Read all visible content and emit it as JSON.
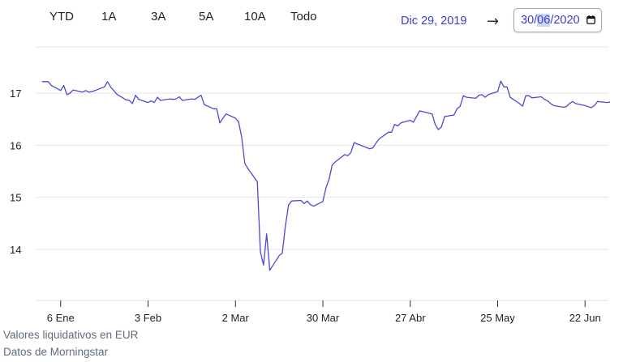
{
  "range_buttons": [
    "YTD",
    "1A",
    "3A",
    "5A",
    "10A",
    "Todo"
  ],
  "date_range": {
    "from": "Dic 29, 2019",
    "arrow": "→",
    "to_day": "30",
    "to_month": "06",
    "to_year": "2020",
    "to_icon": "calendar-icon"
  },
  "footnotes": {
    "line1": "Valores liquidativos en EUR",
    "line2": "Datos de Morningstar"
  },
  "colors": {
    "line": "#4a4ad6",
    "grid": "#e4e4e4",
    "accent_text": "#3b3bd1",
    "footnote": "#5f6c7d"
  },
  "chart_data": {
    "type": "line",
    "title": "",
    "xlabel": "",
    "ylabel": "",
    "x_start": "2019-12-29",
    "x_end": "2020-06-30",
    "ylim": [
      13.0,
      17.8
    ],
    "grid": true,
    "y_ticks": [
      14,
      15,
      16,
      17
    ],
    "x_ticks": [
      {
        "label": "6 Ene",
        "date": "2020-01-06"
      },
      {
        "label": "3 Feb",
        "date": "2020-02-03"
      },
      {
        "label": "2 Mar",
        "date": "2020-03-02"
      },
      {
        "label": "30 Mar",
        "date": "2020-03-30"
      },
      {
        "label": "27 Abr",
        "date": "2020-04-27"
      },
      {
        "label": "25 May",
        "date": "2020-05-25"
      },
      {
        "label": "22 Jun",
        "date": "2020-06-22"
      }
    ],
    "series": [
      {
        "x": [
          "2019-12-31",
          "2020-01-02",
          "2020-01-03",
          "2020-01-06",
          "2020-01-07",
          "2020-01-08",
          "2020-01-09",
          "2020-01-10",
          "2020-01-13",
          "2020-01-14",
          "2020-01-15",
          "2020-01-16",
          "2020-01-17",
          "2020-01-20",
          "2020-01-21",
          "2020-01-22",
          "2020-01-23",
          "2020-01-24",
          "2020-01-27",
          "2020-01-28",
          "2020-01-29",
          "2020-01-30",
          "2020-01-31",
          "2020-02-03",
          "2020-02-04",
          "2020-02-05",
          "2020-02-06",
          "2020-02-07",
          "2020-02-10",
          "2020-02-11",
          "2020-02-12",
          "2020-02-13",
          "2020-02-14",
          "2020-02-17",
          "2020-02-18",
          "2020-02-19",
          "2020-02-20",
          "2020-02-21",
          "2020-02-24",
          "2020-02-25",
          "2020-02-26",
          "2020-02-27",
          "2020-02-28",
          "2020-03-02",
          "2020-03-03",
          "2020-03-04",
          "2020-03-05",
          "2020-03-06",
          "2020-03-09",
          "2020-03-10",
          "2020-03-11",
          "2020-03-12",
          "2020-03-13",
          "2020-03-16",
          "2020-03-17",
          "2020-03-18",
          "2020-03-19",
          "2020-03-20",
          "2020-03-23",
          "2020-03-24",
          "2020-03-25",
          "2020-03-26",
          "2020-03-27",
          "2020-03-30",
          "2020-03-31",
          "2020-04-01",
          "2020-04-02",
          "2020-04-03",
          "2020-04-06",
          "2020-04-07",
          "2020-04-08",
          "2020-04-09",
          "2020-04-14",
          "2020-04-15",
          "2020-04-16",
          "2020-04-17",
          "2020-04-20",
          "2020-04-21",
          "2020-04-22",
          "2020-04-23",
          "2020-04-24",
          "2020-04-27",
          "2020-04-28",
          "2020-04-29",
          "2020-04-30",
          "2020-05-04",
          "2020-05-05",
          "2020-05-06",
          "2020-05-07",
          "2020-05-08",
          "2020-05-11",
          "2020-05-12",
          "2020-05-13",
          "2020-05-14",
          "2020-05-15",
          "2020-05-18",
          "2020-05-19",
          "2020-05-20",
          "2020-05-21",
          "2020-05-22",
          "2020-05-25",
          "2020-05-26",
          "2020-05-27",
          "2020-05-28",
          "2020-05-29",
          "2020-06-01",
          "2020-06-02",
          "2020-06-03",
          "2020-06-04",
          "2020-06-05",
          "2020-06-08",
          "2020-06-09",
          "2020-06-10",
          "2020-06-11",
          "2020-06-12",
          "2020-06-15",
          "2020-06-16",
          "2020-06-17",
          "2020-06-18",
          "2020-06-19",
          "2020-06-22",
          "2020-06-23",
          "2020-06-24",
          "2020-06-25",
          "2020-06-26",
          "2020-06-29",
          "2020-06-30"
        ],
        "values": [
          17.22,
          17.22,
          17.15,
          17.05,
          17.15,
          16.97,
          17.0,
          17.06,
          17.02,
          17.05,
          17.02,
          17.03,
          17.05,
          17.12,
          17.22,
          17.12,
          17.05,
          16.98,
          16.87,
          16.86,
          16.8,
          16.96,
          16.88,
          16.82,
          16.85,
          16.82,
          16.92,
          16.86,
          16.89,
          16.88,
          16.89,
          16.93,
          16.86,
          16.89,
          16.88,
          16.92,
          16.96,
          16.78,
          16.7,
          16.7,
          16.43,
          16.52,
          16.6,
          16.52,
          16.45,
          16.15,
          15.65,
          15.55,
          15.3,
          13.95,
          13.7,
          14.3,
          13.6,
          13.88,
          13.93,
          14.45,
          14.85,
          14.93,
          14.94,
          14.88,
          14.93,
          14.86,
          14.83,
          14.92,
          15.18,
          15.35,
          15.62,
          15.68,
          15.82,
          15.8,
          15.86,
          16.05,
          15.93,
          15.95,
          16.04,
          16.12,
          16.25,
          16.25,
          16.4,
          16.37,
          16.43,
          16.48,
          16.44,
          16.55,
          16.66,
          16.6,
          16.4,
          16.3,
          16.35,
          16.55,
          16.58,
          16.7,
          16.75,
          16.95,
          16.92,
          16.9,
          16.96,
          16.97,
          16.92,
          16.97,
          17.03,
          17.23,
          17.12,
          17.12,
          16.92,
          16.8,
          16.75,
          16.95,
          16.95,
          16.91,
          16.93,
          16.88,
          16.85,
          16.8,
          16.76,
          16.73,
          16.74,
          16.8,
          16.84,
          16.8,
          16.76,
          16.74,
          16.72,
          16.76,
          16.84,
          16.82,
          16.83
        ]
      }
    ]
  }
}
